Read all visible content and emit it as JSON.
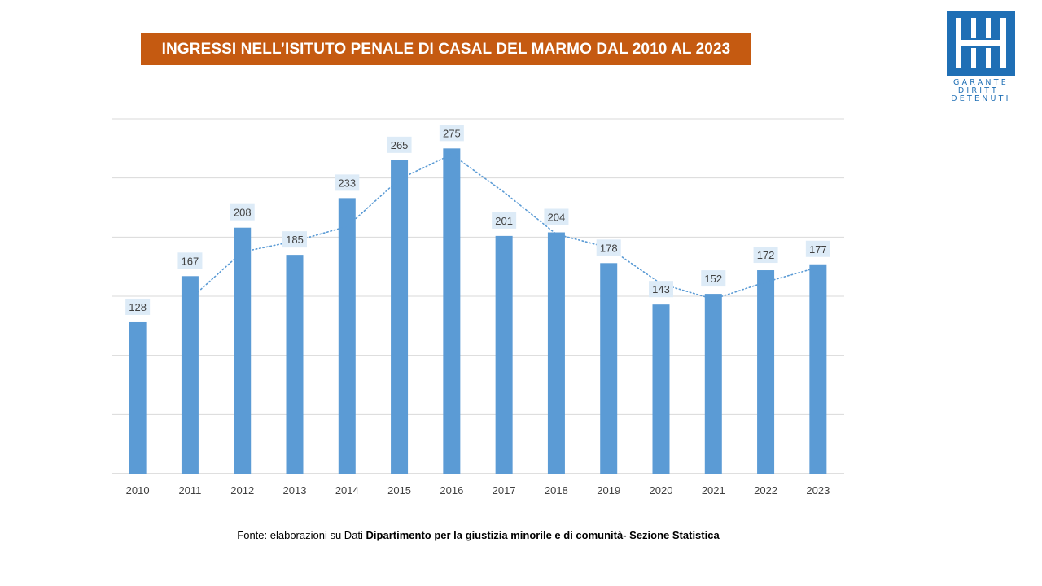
{
  "title": "INGRESSI NELL’ISITUTO PENALE DI CASAL DEL MARMO DAL 2010 AL 2023",
  "logo": {
    "lines": [
      "GARANTE",
      "DIRITTI",
      "DETENUTI"
    ]
  },
  "source": {
    "prefix": "Fonte: elaborazioni su Dati ",
    "bold": "Dipartimento per la giustizia minorile e di comunità- Sezione Statistica"
  },
  "colors": {
    "banner": "#C55A11",
    "bar": "#5B9BD5",
    "label_bg": "#DDEBF7",
    "grid": "#D9D9D9",
    "trend": "#5B9BD5",
    "logo": "#1F6FB5"
  },
  "chart_data": {
    "type": "bar",
    "title": "INGRESSI NELL’ISITUTO PENALE DI CASAL DEL MARMO DAL 2010 AL 2023",
    "categories": [
      "2010",
      "2011",
      "2012",
      "2013",
      "2014",
      "2015",
      "2016",
      "2017",
      "2018",
      "2019",
      "2020",
      "2021",
      "2022",
      "2023"
    ],
    "values": [
      128,
      167,
      208,
      185,
      233,
      265,
      275,
      201,
      204,
      178,
      143,
      152,
      172,
      177
    ],
    "ylim": [
      0,
      300
    ],
    "grid": true,
    "y_axis_labels": false,
    "data_labels": true,
    "trendline": "moving-average-2",
    "legend": "none"
  }
}
